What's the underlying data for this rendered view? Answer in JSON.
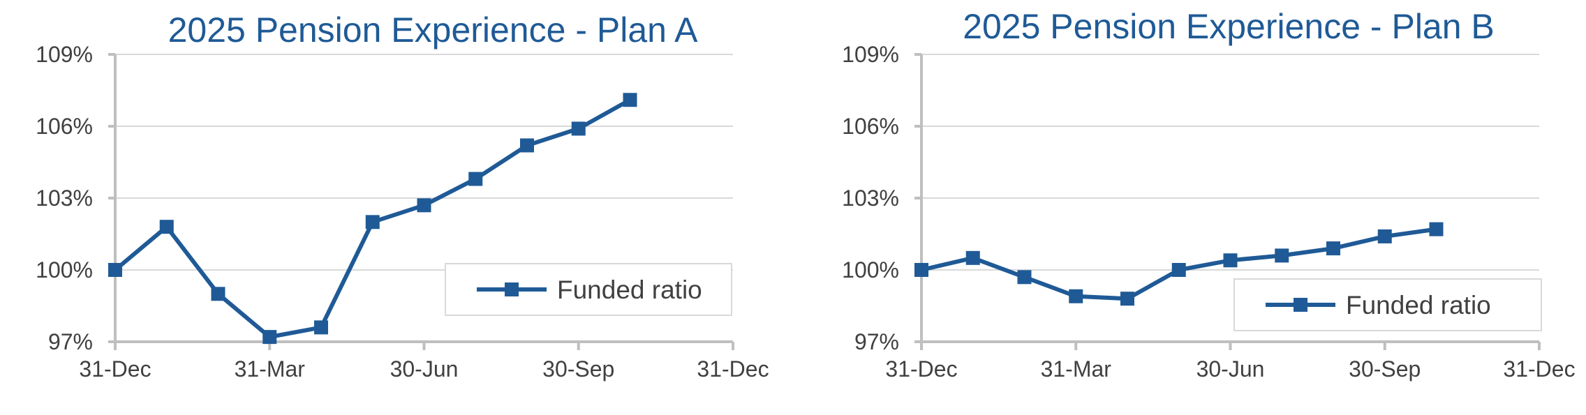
{
  "chart_data": [
    {
      "type": "line",
      "title": "2025 Pension Experience - Plan A",
      "xlabel": "",
      "ylabel": "",
      "x_tick_labels": [
        "31-Dec",
        "31-Mar",
        "30-Jun",
        "30-Sep",
        "31-Dec"
      ],
      "y_tick_labels": [
        "97%",
        "100%",
        "103%",
        "106%",
        "109%"
      ],
      "ylim": [
        97,
        109
      ],
      "x_unit": "month",
      "xlim": [
        0,
        12
      ],
      "grid": true,
      "legend_position": "center-right",
      "series": [
        {
          "name": "Funded ratio",
          "color": "#1f5a96",
          "x": [
            0,
            1,
            2,
            3,
            4,
            5,
            6,
            7,
            8,
            9,
            10
          ],
          "values": [
            100.0,
            101.8,
            99.0,
            97.2,
            97.6,
            102.0,
            102.7,
            103.8,
            105.2,
            105.9,
            107.1
          ]
        }
      ]
    },
    {
      "type": "line",
      "title": "2025 Pension Experience - Plan B",
      "xlabel": "",
      "ylabel": "",
      "x_tick_labels": [
        "31-Dec",
        "31-Mar",
        "30-Jun",
        "30-Sep",
        "31-Dec"
      ],
      "y_tick_labels": [
        "97%",
        "100%",
        "103%",
        "106%",
        "109%"
      ],
      "ylim": [
        97,
        109
      ],
      "x_unit": "month",
      "xlim": [
        0,
        12
      ],
      "grid": true,
      "legend_position": "bottom-right",
      "series": [
        {
          "name": "Funded ratio",
          "color": "#1f5a96",
          "x": [
            0,
            1,
            2,
            3,
            4,
            5,
            6,
            7,
            8,
            9,
            10
          ],
          "values": [
            100.0,
            100.5,
            99.7,
            98.9,
            98.8,
            100.0,
            100.4,
            100.6,
            100.9,
            101.4,
            101.7
          ]
        }
      ]
    }
  ]
}
